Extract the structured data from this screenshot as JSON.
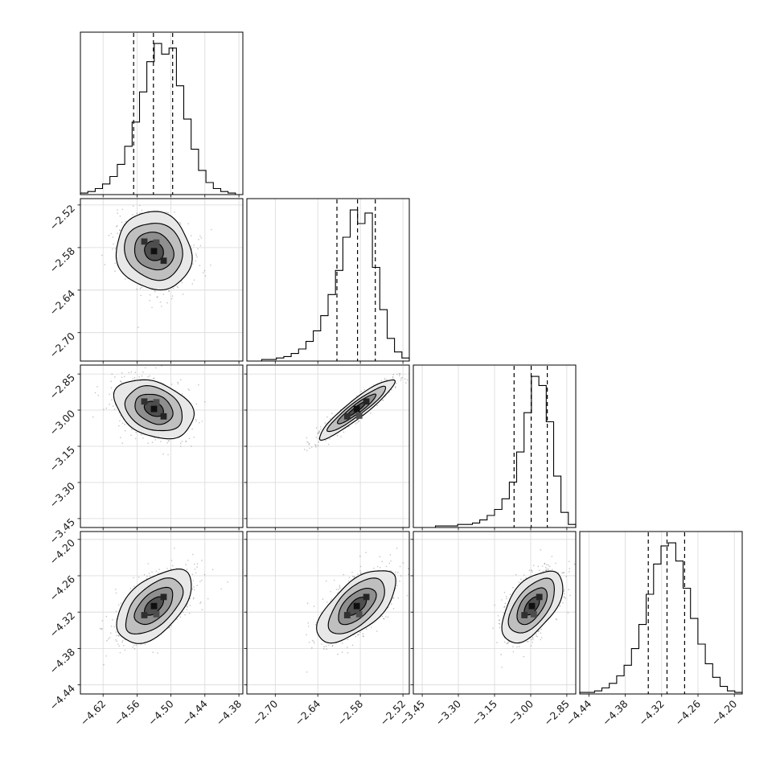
{
  "figure": {
    "kind": "corner-plot",
    "background": "#ffffff",
    "title": ""
  },
  "chart_data": {
    "type": "scatter",
    "subtype": "corner_posterior_plot",
    "description": "4-parameter MCMC posterior corner plot: diagonal step histograms with dashed 16/50/84 percentile lines; lower-triangle panels show 2D grayscale filled contours (0.5,1,1.5,2 sigma) over scatter samples with dark 2D-histogram core bins.",
    "grid": true,
    "legend": false,
    "parameters": [
      {
        "id": "param-1",
        "range": [
          -4.66,
          -4.373
        ],
        "ticks": [
          -4.62,
          -4.56,
          -4.5,
          -4.44,
          -4.38
        ],
        "tick_labels": [
          "−4.62",
          "−4.56",
          "−4.50",
          "−4.44",
          "−4.38"
        ],
        "quantiles": [
          -4.566,
          -4.531,
          -4.497
        ],
        "mean": -4.53,
        "sigma": 0.034,
        "hist": [
          1,
          2,
          4,
          7,
          12,
          20,
          32,
          48,
          68,
          88,
          100,
          93,
          97,
          72,
          50,
          30,
          16,
          8,
          4,
          2,
          1,
          0
        ]
      },
      {
        "id": "param-2",
        "range": [
          -2.74,
          -2.511
        ],
        "ticks": [
          -2.7,
          -2.64,
          -2.58,
          -2.52
        ],
        "tick_labels": [
          "−2.70",
          "−2.64",
          "−2.58",
          "−2.52"
        ],
        "quantiles": [
          -2.613,
          -2.584,
          -2.559
        ],
        "mean": -2.585,
        "sigma": 0.027,
        "hist": [
          0,
          0,
          1,
          1,
          2,
          3,
          5,
          8,
          13,
          20,
          30,
          44,
          60,
          82,
          100,
          91,
          98,
          62,
          34,
          15,
          6,
          2
        ]
      },
      {
        "id": "param-3",
        "range": [
          -3.487,
          -2.813
        ],
        "ticks": [
          -3.45,
          -3.3,
          -3.15,
          -3.0,
          -2.85
        ],
        "tick_labels": [
          "−3.45",
          "−3.30",
          "−3.15",
          "−3.00",
          "−2.85"
        ],
        "quantiles": [
          -3.069,
          -2.998,
          -2.931
        ],
        "mean": -2.995,
        "sigma": 0.062,
        "hist": [
          0,
          0,
          0,
          1,
          1,
          1,
          2,
          2,
          3,
          5,
          8,
          12,
          19,
          30,
          50,
          76,
          100,
          94,
          70,
          34,
          10,
          2
        ]
      },
      {
        "id": "param-4",
        "range": [
          -4.455,
          -4.187
        ],
        "ticks": [
          -4.44,
          -4.38,
          -4.32,
          -4.26,
          -4.2
        ],
        "tick_labels": [
          "−4.44",
          "−4.38",
          "−4.32",
          "−4.26",
          "−4.20"
        ],
        "quantiles": [
          -4.342,
          -4.311,
          -4.282
        ],
        "mean": -4.31,
        "sigma": 0.03,
        "hist": [
          1,
          1,
          2,
          4,
          7,
          12,
          19,
          30,
          46,
          66,
          86,
          98,
          100,
          88,
          70,
          50,
          33,
          20,
          11,
          5,
          2,
          1
        ]
      }
    ],
    "correlation_matrix": [
      [
        1.0,
        -0.12,
        -0.28,
        0.55
      ],
      [
        -0.12,
        1.0,
        0.93,
        0.62
      ],
      [
        -0.28,
        0.93,
        1.0,
        0.55
      ],
      [
        0.55,
        0.62,
        0.55,
        1.0
      ]
    ],
    "contour_levels_sigma": [
      0.5,
      1.0,
      1.5,
      2.0
    ],
    "style": {
      "contour_line": "#000000",
      "contour_fills": [
        "#e8e8e8",
        "#bfbfbf",
        "#8f8f8f",
        "#4f4f4f"
      ],
      "core_bin_colors": [
        "#101010",
        "#242424",
        "#303030",
        "#4d4d4d"
      ],
      "scatter_color": "#3c3c3c",
      "scatter_opacity": 0.3,
      "scatter_points_per_panel": 750,
      "grid_color": "#d8d8d8",
      "frame_color": "#000000",
      "quantile_dash": "5 4",
      "tick_label_color": "#1a1a1a"
    }
  }
}
